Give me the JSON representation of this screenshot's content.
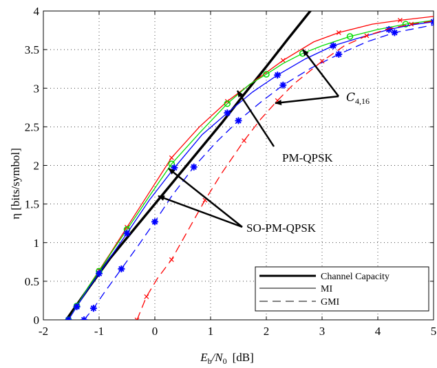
{
  "chart_data": {
    "type": "line",
    "xlabel_main": "E",
    "xlabel_sub": "b",
    "xlabel_mid": "/N",
    "xlabel_sub2": "0",
    "xlabel_tail": "[dB]",
    "ylabel": "η [bits/symbol]",
    "xlim": [
      -2,
      5
    ],
    "ylim": [
      0,
      4
    ],
    "xticks": [
      "-2",
      "-1",
      "0",
      "1",
      "2",
      "3",
      "4",
      "5"
    ],
    "yticks": [
      "0",
      "0.5",
      "1",
      "1.5",
      "2",
      "2.5",
      "3",
      "3.5",
      "4"
    ],
    "grid": true,
    "legend": {
      "placement": "bottom-right",
      "entries": [
        "Channel Capacity",
        "MI",
        "GMI"
      ]
    },
    "annotations": {
      "c416": "C",
      "c416_sub": "4,16",
      "pmqpsk": "PM-QPSK",
      "sopmqpsk": "SO-PM-QPSK"
    },
    "colors": {
      "capacity": "#000000",
      "red": "#ff0000",
      "green": "#00dd00",
      "blue": "#0000ff"
    },
    "series": [
      {
        "key": "capacity",
        "style": "thick-solid",
        "color": "#000000",
        "x": [
          -1.59,
          -1.2,
          -0.8,
          -0.4,
          0.0,
          0.4,
          0.8,
          1.2,
          1.6,
          2.0,
          2.4,
          2.7,
          2.9
        ],
        "y": [
          0.0,
          0.4,
          0.8,
          1.15,
          1.5,
          1.85,
          2.2,
          2.55,
          2.92,
          3.28,
          3.65,
          3.92,
          4.1
        ]
      },
      {
        "key": "mi-c416",
        "style": "solid",
        "color": "#ff0000",
        "marker": "x",
        "x": [
          -1.55,
          -1.4,
          -1.2,
          -1.0,
          -0.8,
          -0.5,
          -0.1,
          0.3,
          0.8,
          1.3,
          1.8,
          2.3,
          2.85,
          3.3,
          3.9,
          4.4,
          5.0
        ],
        "y": [
          0.0,
          0.18,
          0.42,
          0.64,
          0.86,
          1.2,
          1.65,
          2.1,
          2.5,
          2.83,
          3.1,
          3.36,
          3.6,
          3.72,
          3.83,
          3.88,
          3.93
        ]
      },
      {
        "key": "mi-pmqpsk",
        "style": "solid",
        "color": "#00dd00",
        "marker": "o",
        "x": [
          -1.55,
          -1.4,
          -1.2,
          -1.0,
          -0.8,
          -0.5,
          -0.1,
          0.3,
          0.8,
          1.3,
          1.7,
          2.0,
          2.3,
          2.65,
          3.0,
          3.5,
          4.0,
          4.5,
          5.0
        ],
        "y": [
          0.0,
          0.18,
          0.42,
          0.63,
          0.85,
          1.17,
          1.6,
          2.02,
          2.42,
          2.8,
          3.05,
          3.18,
          3.32,
          3.45,
          3.55,
          3.67,
          3.76,
          3.83,
          3.88
        ]
      },
      {
        "key": "mi-sopmqpsk",
        "style": "solid",
        "color": "#0000ff",
        "marker": "*",
        "x": [
          -1.55,
          -1.4,
          -1.2,
          -1.0,
          -0.8,
          -0.5,
          -0.1,
          0.35,
          0.85,
          1.3,
          1.75,
          2.2,
          2.7,
          3.2,
          3.7,
          4.2,
          4.6,
          5.0
        ],
        "y": [
          0.0,
          0.17,
          0.4,
          0.6,
          0.81,
          1.12,
          1.55,
          1.97,
          2.4,
          2.68,
          2.95,
          3.17,
          3.38,
          3.55,
          3.66,
          3.76,
          3.82,
          3.86
        ]
      },
      {
        "key": "gmi-sopmqpsk",
        "style": "dashed",
        "color": "#0000ff",
        "marker": "*",
        "x": [
          -1.27,
          -1.1,
          -0.9,
          -0.6,
          -0.3,
          0.0,
          0.3,
          0.7,
          1.1,
          1.5,
          1.9,
          2.3,
          2.8,
          3.3,
          3.8,
          4.3,
          5.0
        ],
        "y": [
          0.0,
          0.15,
          0.36,
          0.66,
          0.96,
          1.27,
          1.6,
          1.98,
          2.3,
          2.58,
          2.82,
          3.04,
          3.26,
          3.44,
          3.6,
          3.72,
          3.82
        ]
      },
      {
        "key": "gmi-c416",
        "style": "dashed",
        "color": "#ff0000",
        "marker": "x",
        "x": [
          -0.32,
          -0.15,
          0.05,
          0.3,
          0.55,
          0.9,
          1.2,
          1.6,
          1.9,
          2.2,
          2.5,
          3.0,
          3.4,
          3.8,
          4.2,
          4.6,
          5.0
        ],
        "y": [
          0.0,
          0.3,
          0.54,
          0.78,
          1.1,
          1.55,
          1.9,
          2.32,
          2.6,
          2.84,
          3.06,
          3.35,
          3.55,
          3.68,
          3.77,
          3.83,
          3.87
        ]
      }
    ]
  }
}
